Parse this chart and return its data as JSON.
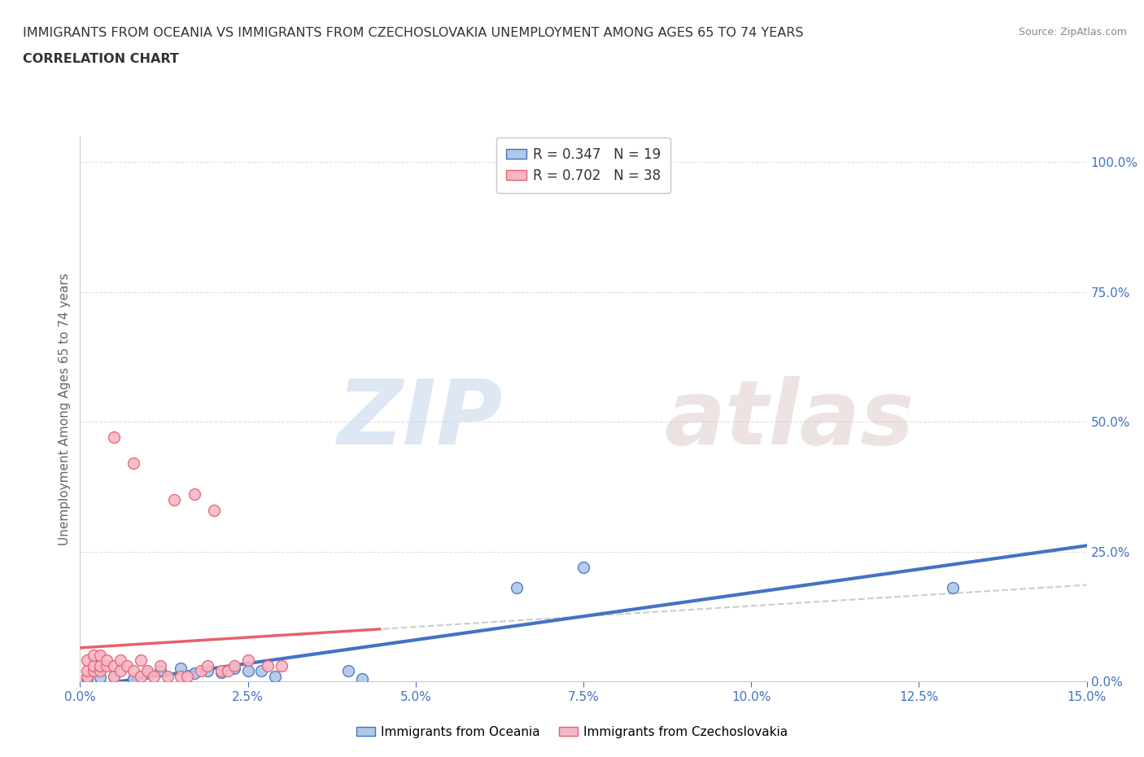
{
  "title_line1": "IMMIGRANTS FROM OCEANIA VS IMMIGRANTS FROM CZECHOSLOVAKIA UNEMPLOYMENT AMONG AGES 65 TO 74 YEARS",
  "title_line2": "CORRELATION CHART",
  "source": "Source: ZipAtlas.com",
  "ylabel": "Unemployment Among Ages 65 to 74 years",
  "legend_label1": "Immigrants from Oceania",
  "legend_label2": "Immigrants from Czechoslovakia",
  "R1": 0.347,
  "N1": 19,
  "R2": 0.702,
  "N2": 38,
  "xlim": [
    0,
    0.15
  ],
  "ylim": [
    0,
    1.05
  ],
  "color_blue": "#adc8e8",
  "color_pink": "#f5b8c8",
  "color_blue_line": "#4472c4",
  "color_pink_line": "#e8606a",
  "scatter_blue_x": [
    0.001,
    0.003,
    0.005,
    0.008,
    0.01,
    0.012,
    0.015,
    0.017,
    0.019,
    0.021,
    0.023,
    0.025,
    0.027,
    0.029,
    0.04,
    0.042,
    0.065,
    0.075,
    0.13
  ],
  "scatter_blue_y": [
    0.005,
    0.008,
    0.01,
    0.005,
    0.015,
    0.02,
    0.025,
    0.015,
    0.02,
    0.018,
    0.025,
    0.02,
    0.02,
    0.01,
    0.02,
    0.005,
    0.18,
    0.22,
    0.18
  ],
  "scatter_pink_x": [
    0.001,
    0.001,
    0.001,
    0.002,
    0.002,
    0.002,
    0.003,
    0.003,
    0.003,
    0.004,
    0.004,
    0.005,
    0.005,
    0.005,
    0.006,
    0.006,
    0.007,
    0.008,
    0.008,
    0.009,
    0.009,
    0.01,
    0.011,
    0.012,
    0.013,
    0.014,
    0.015,
    0.016,
    0.017,
    0.018,
    0.019,
    0.02,
    0.021,
    0.022,
    0.023,
    0.025,
    0.028,
    0.03
  ],
  "scatter_pink_y": [
    0.01,
    0.02,
    0.04,
    0.02,
    0.03,
    0.05,
    0.02,
    0.03,
    0.05,
    0.03,
    0.04,
    0.47,
    0.03,
    0.01,
    0.04,
    0.02,
    0.03,
    0.42,
    0.02,
    0.04,
    0.01,
    0.02,
    0.01,
    0.03,
    0.01,
    0.35,
    0.01,
    0.01,
    0.36,
    0.02,
    0.03,
    0.33,
    0.02,
    0.02,
    0.03,
    0.04,
    0.03,
    0.03
  ],
  "grid_color": "#e0e0e0",
  "background_color": "#ffffff",
  "right_yticks": [
    0.0,
    0.25,
    0.5,
    0.75,
    1.0
  ],
  "right_yticklabels": [
    "0.0%",
    "25.0%",
    "50.0%",
    "75.0%",
    "100.0%"
  ],
  "xticks": [
    0.0,
    0.025,
    0.05,
    0.075,
    0.1,
    0.125,
    0.15
  ]
}
